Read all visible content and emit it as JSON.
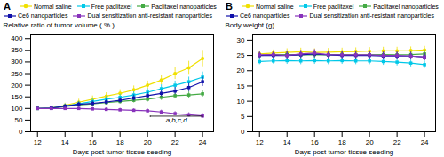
{
  "chart_data": [
    {
      "type": "line",
      "title": "A",
      "xlabel": "Days post tumor tissue seeding",
      "ylabel": "Relative ratio of tumor volume ( % )",
      "x": [
        12,
        13,
        14,
        15,
        16,
        17,
        18,
        19,
        20,
        21,
        22,
        23,
        24
      ],
      "xlim": [
        11.5,
        24.8
      ],
      "xticks": [
        12,
        14,
        16,
        18,
        20,
        22,
        24
      ],
      "ylim": [
        0,
        420
      ],
      "yticks": [
        0,
        50,
        100,
        150,
        200,
        250,
        300,
        350,
        400
      ],
      "grid": false,
      "legend": "upper left",
      "series": [
        {
          "name": "Normal saline",
          "color": "#f0e000",
          "marker": "circle",
          "values": [
            100,
            103,
            113,
            127,
            140,
            153,
            165,
            180,
            200,
            222,
            250,
            275,
            315
          ],
          "errors": [
            4,
            5,
            10,
            13,
            14,
            15,
            16,
            17,
            18,
            20,
            25,
            28,
            35
          ]
        },
        {
          "name": "Free paclitaxel",
          "color": "#00c8e8",
          "marker": "square",
          "values": [
            100,
            102,
            110,
            120,
            130,
            140,
            148,
            158,
            170,
            185,
            200,
            215,
            235
          ],
          "errors": [
            4,
            5,
            10,
            11,
            12,
            13,
            13,
            14,
            15,
            17,
            18,
            20,
            22
          ]
        },
        {
          "name": "Paclitaxel nanoparticles",
          "color": "#44aa44",
          "marker": "square",
          "values": [
            100,
            101,
            108,
            115,
            120,
            125,
            130,
            135,
            140,
            148,
            155,
            158,
            163
          ],
          "errors": [
            4,
            5,
            8,
            9,
            10,
            10,
            11,
            11,
            12,
            13,
            13,
            14,
            14
          ]
        },
        {
          "name": "Ce6 nanoparticles",
          "color": "#1111aa",
          "marker": "square",
          "values": [
            100,
            102,
            110,
            118,
            122,
            128,
            135,
            145,
            155,
            165,
            175,
            190,
            215
          ],
          "errors": [
            4,
            5,
            8,
            10,
            11,
            11,
            12,
            13,
            14,
            15,
            16,
            18,
            20
          ]
        },
        {
          "name": "Dual sensitization anti-resistant nanoparticles",
          "color": "#8833bb",
          "marker": "square",
          "values": [
            100,
            100,
            100,
            100,
            98,
            96,
            94,
            92,
            90,
            85,
            78,
            73,
            68
          ],
          "errors": [
            4,
            5,
            6,
            7,
            7,
            7,
            7,
            7,
            8,
            8,
            9,
            9,
            10
          ]
        }
      ],
      "annotations": [
        {
          "text": "a,b,c,d",
          "x_start": 20.2,
          "x_end": 24.0,
          "y": 62,
          "y_top": 67,
          "text_x": 22.1,
          "text_y": 60
        }
      ]
    },
    {
      "type": "line",
      "title": "B",
      "xlabel": "Days post tumor tissue seeding",
      "ylabel": "Body weight (g)",
      "x": [
        12,
        13,
        14,
        15,
        16,
        17,
        18,
        19,
        20,
        21,
        22,
        23,
        24
      ],
      "xlim": [
        11.5,
        24.8
      ],
      "xticks": [
        12,
        14,
        16,
        18,
        20,
        22,
        24
      ],
      "ylim": [
        0,
        32
      ],
      "yticks": [
        0,
        5,
        10,
        15,
        20,
        25,
        30
      ],
      "grid": false,
      "legend": "upper left",
      "series": [
        {
          "name": "Normal saline",
          "color": "#f0e000",
          "marker": "circle",
          "values": [
            25.5,
            25.8,
            26.0,
            26.2,
            26.0,
            26.1,
            26.2,
            26.3,
            26.4,
            26.5,
            26.5,
            26.6,
            26.8
          ],
          "errors": [
            1.0,
            1.0,
            1.2,
            1.2,
            1.2,
            1.2,
            1.2,
            1.2,
            1.2,
            1.2,
            1.2,
            1.2,
            1.2
          ]
        },
        {
          "name": "Free paclitaxel",
          "color": "#00c8e8",
          "marker": "square",
          "values": [
            23.0,
            23.2,
            23.3,
            23.2,
            23.3,
            23.2,
            23.3,
            23.2,
            23.2,
            23.0,
            22.8,
            22.5,
            22.0
          ],
          "errors": [
            1.0,
            1.0,
            1.2,
            1.2,
            1.2,
            1.2,
            1.2,
            1.2,
            1.2,
            1.2,
            1.2,
            1.2,
            1.2
          ]
        },
        {
          "name": "Paclitaxel nanoparticles",
          "color": "#44aa44",
          "marker": "square",
          "values": [
            25.0,
            25.2,
            25.3,
            25.2,
            25.3,
            25.2,
            25.3,
            25.2,
            25.2,
            25.3,
            25.2,
            25.3,
            25.5
          ],
          "errors": [
            1.0,
            1.0,
            1.2,
            1.2,
            1.2,
            1.2,
            1.2,
            1.2,
            1.2,
            1.2,
            1.2,
            1.2,
            1.2
          ]
        },
        {
          "name": "Ce6 nanoparticles",
          "color": "#1111aa",
          "marker": "square",
          "values": [
            25.0,
            25.0,
            25.0,
            25.2,
            25.5,
            25.2,
            25.0,
            25.0,
            25.0,
            24.8,
            24.8,
            24.8,
            24.5
          ],
          "errors": [
            1.0,
            1.0,
            1.2,
            1.2,
            1.2,
            1.2,
            1.2,
            1.2,
            1.2,
            1.2,
            1.2,
            1.2,
            1.2
          ]
        },
        {
          "name": "Dual sensitization anti-resistant nanoparticles",
          "color": "#8833bb",
          "marker": "square",
          "values": [
            25.2,
            25.3,
            25.0,
            25.5,
            25.8,
            25.3,
            25.2,
            25.2,
            25.2,
            25.0,
            25.0,
            24.8,
            24.5
          ],
          "errors": [
            1.0,
            1.0,
            1.2,
            1.2,
            1.2,
            1.2,
            1.2,
            1.2,
            1.2,
            1.2,
            1.2,
            1.2,
            1.2
          ]
        }
      ]
    }
  ]
}
